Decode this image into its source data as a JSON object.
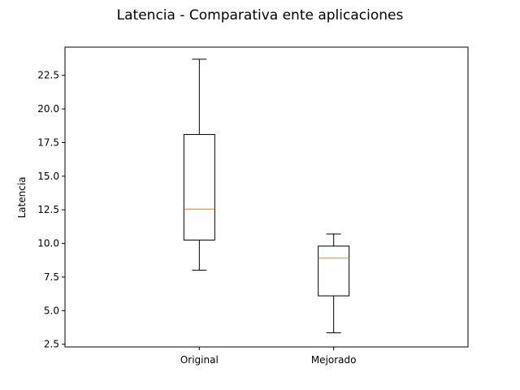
{
  "chart_data": {
    "type": "box",
    "title": "Latencia - Comparativa ente aplicaciones",
    "xlabel": "",
    "ylabel": "Latencia",
    "categories": [
      "Original",
      "Mejorado"
    ],
    "boxes": [
      {
        "category": "Original",
        "whisker_low": 8.0,
        "q1": 10.25,
        "median": 12.55,
        "q3": 18.1,
        "whisker_high": 23.7
      },
      {
        "category": "Mejorado",
        "whisker_low": 3.35,
        "q1": 6.1,
        "median": 8.9,
        "q3": 9.8,
        "whisker_high": 10.7
      }
    ],
    "yticks": [
      2.5,
      5.0,
      7.5,
      10.0,
      12.5,
      15.0,
      17.5,
      20.0,
      22.5
    ],
    "ytick_labels": [
      "2.5",
      "5.0",
      "7.5",
      "10.0",
      "12.5",
      "15.0",
      "17.5",
      "20.0",
      "22.5"
    ],
    "ylim": [
      2.3,
      24.6
    ],
    "grid": false,
    "colors": {
      "box": "#000000",
      "median": "#ff7f0e",
      "frame": "#000000"
    }
  }
}
